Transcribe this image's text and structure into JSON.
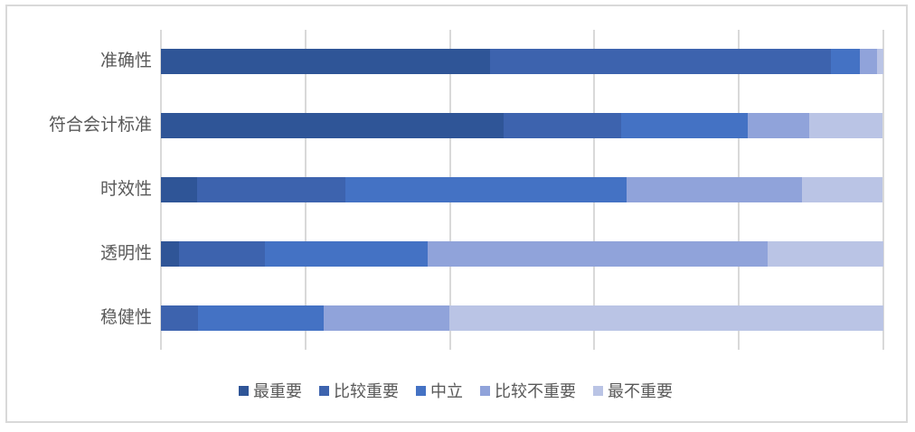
{
  "chart_data": {
    "type": "bar",
    "stacked": true,
    "orientation": "horizontal",
    "unit": "percent_of_row",
    "title": "",
    "xlabel": "",
    "ylabel": "",
    "xlim": [
      0,
      100
    ],
    "gridlines": {
      "show": true,
      "interval_percent": 20,
      "color": "#d9d9d9"
    },
    "legend_position": "bottom",
    "categories": [
      "准确性",
      "符合会计标准",
      "时效性",
      "透明性",
      "稳健性"
    ],
    "series": [
      {
        "name": "最重要",
        "color": "#2f5597",
        "values": [
          45.5,
          47.4,
          5.0,
          2.5,
          0.0
        ]
      },
      {
        "name": "比较重要",
        "color": "#3d63ae",
        "values": [
          47.3,
          16.3,
          20.5,
          11.9,
          5.1
        ]
      },
      {
        "name": "中立",
        "color": "#4472c4",
        "values": [
          3.9,
          17.5,
          39.0,
          22.5,
          17.4
        ]
      },
      {
        "name": "比较不重要",
        "color": "#90a3da",
        "values": [
          2.4,
          8.6,
          24.3,
          47.1,
          17.4
        ]
      },
      {
        "name": "最不重要",
        "color": "#bac4e5",
        "values": [
          0.9,
          10.1,
          11.1,
          16.0,
          60.1
        ]
      }
    ]
  },
  "frame": {
    "border_color": "#d9d9d9",
    "background": "#ffffff"
  },
  "text_colors": {
    "category_label": "#595959",
    "legend_label": "#595959"
  }
}
